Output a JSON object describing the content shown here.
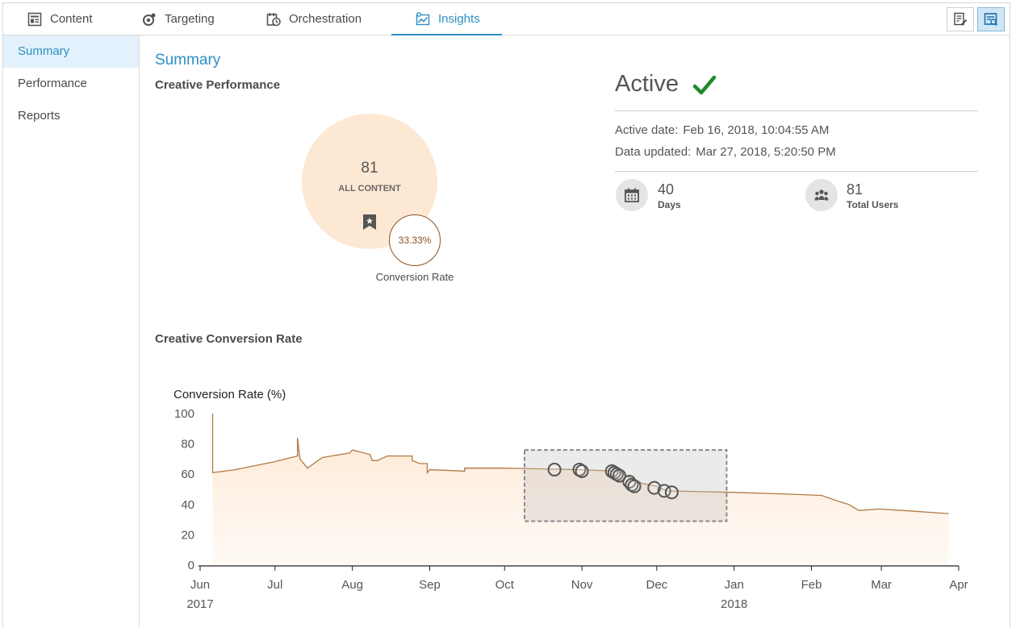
{
  "tabs": [
    {
      "label": "Content",
      "icon": "content-icon"
    },
    {
      "label": "Targeting",
      "icon": "targeting-icon"
    },
    {
      "label": "Orchestration",
      "icon": "orchestration-icon"
    },
    {
      "label": "Insights",
      "icon": "insights-icon",
      "active": true
    }
  ],
  "toolbar": {
    "icons": [
      "edit-document-icon",
      "insights-report-icon"
    ]
  },
  "sidebar": {
    "items": [
      {
        "label": "Summary",
        "active": true
      },
      {
        "label": "Performance"
      },
      {
        "label": "Reports"
      }
    ]
  },
  "main": {
    "title": "Summary",
    "creative_performance": {
      "heading": "Creative Performance",
      "count": "81",
      "count_label": "ALL CONTENT",
      "rate": "33.33%",
      "rate_label": "Conversion Rate"
    },
    "status": {
      "label": "Active",
      "active_date_label": "Active date:",
      "active_date": "Feb 16, 2018, 10:04:55 AM",
      "updated_label": "Data updated:",
      "updated": "Mar 27, 2018, 5:20:50 PM",
      "days_value": "40",
      "days_label": "Days",
      "users_value": "81",
      "users_label": "Total Users",
      "check_color": "#1e8a2e"
    },
    "conversion_heading": "Creative Conversion Rate"
  },
  "colors": {
    "accent": "#2d8fc4",
    "line": "#b07a44",
    "bubble": "#fde8d4"
  },
  "chart_data": {
    "type": "area",
    "ylabel": "Conversion Rate (%)",
    "ylim": [
      0,
      100
    ],
    "yticks": [
      0,
      20,
      40,
      60,
      80,
      100
    ],
    "xticks": [
      {
        "label": "Jun",
        "sub": "2017",
        "date": "2017-06-01"
      },
      {
        "label": "Jul",
        "date": "2017-07-01"
      },
      {
        "label": "Aug",
        "date": "2017-08-01"
      },
      {
        "label": "Sep",
        "date": "2017-09-01"
      },
      {
        "label": "Oct",
        "date": "2017-10-01"
      },
      {
        "label": "Nov",
        "date": "2017-11-01"
      },
      {
        "label": "Dec",
        "date": "2017-12-01"
      },
      {
        "label": "Jan",
        "sub": "2018",
        "date": "2018-01-01"
      },
      {
        "label": "Feb",
        "date": "2018-02-01"
      },
      {
        "label": "Mar",
        "date": "2018-03-01"
      },
      {
        "label": "Apr",
        "date": "2018-04-01"
      }
    ],
    "series": [
      {
        "points": [
          [
            "2017-06-06",
            100
          ],
          [
            "2017-06-06",
            61
          ],
          [
            "2017-06-15",
            63
          ],
          [
            "2017-06-30",
            68
          ],
          [
            "2017-07-10",
            72
          ],
          [
            "2017-07-10",
            84
          ],
          [
            "2017-07-11",
            70
          ],
          [
            "2017-07-14",
            64
          ],
          [
            "2017-07-20",
            71
          ],
          [
            "2017-07-31",
            74
          ],
          [
            "2017-08-01",
            76
          ],
          [
            "2017-08-08",
            73
          ],
          [
            "2017-08-09",
            69
          ],
          [
            "2017-08-11",
            69
          ],
          [
            "2017-08-15",
            72
          ],
          [
            "2017-08-25",
            72
          ],
          [
            "2017-08-25",
            69
          ],
          [
            "2017-08-28",
            67
          ],
          [
            "2017-08-31",
            67
          ],
          [
            "2017-08-31",
            61
          ],
          [
            "2017-09-01",
            63
          ],
          [
            "2017-09-15",
            62
          ],
          [
            "2017-09-15",
            64
          ],
          [
            "2017-10-01",
            64
          ],
          [
            "2017-10-31",
            63
          ],
          [
            "2017-11-15",
            62
          ],
          [
            "2017-11-25",
            54
          ],
          [
            "2017-12-01",
            52
          ],
          [
            "2017-12-05",
            49
          ],
          [
            "2018-01-01",
            48
          ],
          [
            "2018-01-20",
            47
          ],
          [
            "2018-02-05",
            46
          ],
          [
            "2018-02-12",
            42
          ],
          [
            "2018-02-16",
            40
          ],
          [
            "2018-02-20",
            36
          ],
          [
            "2018-02-28",
            37
          ],
          [
            "2018-03-10",
            36
          ],
          [
            "2018-03-28",
            34
          ]
        ]
      }
    ],
    "selection": {
      "x": [
        "2017-10-09",
        "2017-12-29"
      ],
      "y": [
        29,
        76
      ]
    },
    "markers": [
      [
        "2017-10-21",
        63
      ],
      [
        "2017-10-31",
        63
      ],
      [
        "2017-11-01",
        62
      ],
      [
        "2017-11-13",
        62
      ],
      [
        "2017-11-14",
        61
      ],
      [
        "2017-11-15",
        60
      ],
      [
        "2017-11-16",
        59
      ],
      [
        "2017-11-20",
        55
      ],
      [
        "2017-11-21",
        53
      ],
      [
        "2017-11-22",
        52
      ],
      [
        "2017-11-30",
        51
      ],
      [
        "2017-12-04",
        49
      ],
      [
        "2017-12-07",
        48
      ]
    ]
  }
}
